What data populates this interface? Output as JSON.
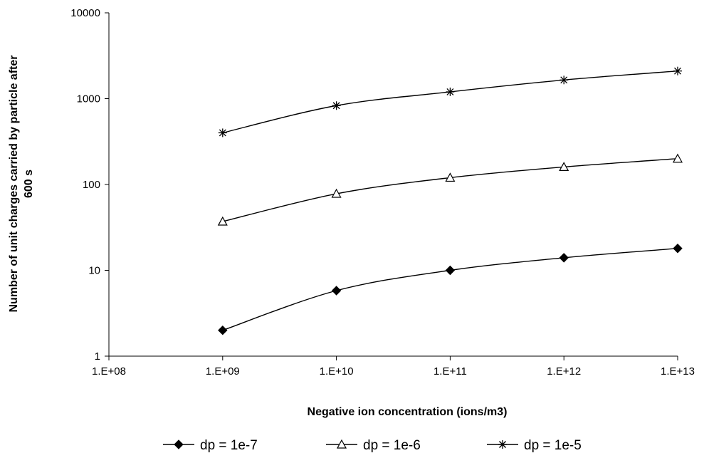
{
  "chart_data": {
    "type": "line",
    "title": "",
    "xlabel": "Negative ion concentration (ions/m3)",
    "ylabel_line1": "Number of unit charges carried by particle after",
    "ylabel_line2": "600 s",
    "x_scale": "log",
    "y_scale": "log",
    "xlim": [
      100000000,
      10000000000000
    ],
    "ylim": [
      1,
      10000
    ],
    "x_ticks": [
      100000000,
      1000000000,
      10000000000,
      100000000000,
      1000000000000,
      10000000000000
    ],
    "x_tick_labels": [
      "1.E+08",
      "1.E+09",
      "1.E+10",
      "1.E+11",
      "1.E+12",
      "1.E+13"
    ],
    "y_ticks": [
      1,
      10,
      100,
      1000,
      10000
    ],
    "y_tick_labels": [
      "1",
      "10",
      "100",
      "1000",
      "10000"
    ],
    "grid": false,
    "legend_position": "bottom",
    "x": [
      1000000000,
      10000000000,
      100000000000,
      1000000000000,
      10000000000000
    ],
    "series": [
      {
        "name": "dp = 1e-7",
        "marker": "diamond",
        "values": [
          2,
          5.8,
          10,
          14,
          18
        ]
      },
      {
        "name": "dp = 1e-6",
        "marker": "triangle",
        "values": [
          37,
          78,
          120,
          160,
          200
        ]
      },
      {
        "name": "dp = 1e-5",
        "marker": "asterisk",
        "values": [
          400,
          830,
          1200,
          1650,
          2100
        ]
      }
    ]
  }
}
